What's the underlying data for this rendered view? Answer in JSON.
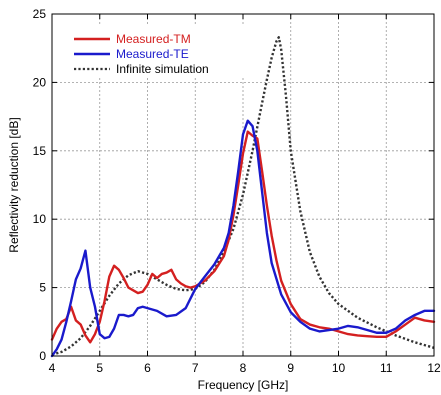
{
  "chart_data": {
    "type": "line",
    "title": "",
    "xlabel": "Frequency [GHz]",
    "ylabel": "Reflectivity reduction [dB]",
    "xlim": [
      4,
      12
    ],
    "ylim": [
      0,
      25
    ],
    "xticks": [
      4,
      5,
      6,
      7,
      8,
      9,
      10,
      11,
      12
    ],
    "yticks": [
      0,
      5,
      10,
      15,
      20,
      25
    ],
    "grid": true,
    "legend_position": "top-left",
    "series": [
      {
        "name": "Measured-TM",
        "color": "#d42020",
        "style": "solid",
        "x": [
          4.0,
          4.1,
          4.2,
          4.3,
          4.4,
          4.5,
          4.6,
          4.7,
          4.8,
          4.9,
          5.0,
          5.1,
          5.2,
          5.3,
          5.4,
          5.5,
          5.6,
          5.7,
          5.8,
          5.9,
          6.0,
          6.1,
          6.2,
          6.3,
          6.4,
          6.5,
          6.6,
          6.7,
          6.8,
          6.9,
          7.0,
          7.2,
          7.4,
          7.6,
          7.7,
          7.8,
          7.9,
          8.0,
          8.1,
          8.2,
          8.3,
          8.4,
          8.5,
          8.6,
          8.7,
          8.8,
          9.0,
          9.2,
          9.4,
          9.6,
          9.8,
          10.0,
          10.2,
          10.4,
          10.6,
          10.8,
          11.0,
          11.2,
          11.4,
          11.6,
          11.8,
          12.0
        ],
        "y": [
          1.2,
          2.0,
          2.5,
          2.7,
          3.6,
          2.6,
          2.3,
          1.5,
          1.0,
          1.6,
          2.5,
          4.0,
          5.8,
          6.6,
          6.3,
          5.7,
          5.0,
          4.8,
          4.6,
          4.7,
          5.2,
          6.0,
          5.7,
          6.0,
          6.1,
          6.3,
          5.6,
          5.3,
          5.1,
          5.0,
          5.1,
          5.5,
          6.2,
          7.3,
          8.5,
          10.3,
          12.5,
          14.8,
          16.4,
          16.1,
          15.9,
          13.5,
          11.0,
          8.8,
          7.0,
          5.5,
          3.8,
          2.7,
          2.3,
          2.1,
          2.0,
          1.8,
          1.6,
          1.5,
          1.45,
          1.4,
          1.4,
          1.8,
          2.3,
          2.8,
          2.6,
          2.5
        ]
      },
      {
        "name": "Measured-TE",
        "color": "#1a1acc",
        "style": "solid",
        "x": [
          4.0,
          4.1,
          4.2,
          4.3,
          4.4,
          4.5,
          4.6,
          4.7,
          4.8,
          4.9,
          5.0,
          5.1,
          5.2,
          5.3,
          5.4,
          5.5,
          5.6,
          5.7,
          5.8,
          5.9,
          6.0,
          6.2,
          6.4,
          6.6,
          6.8,
          7.0,
          7.2,
          7.4,
          7.6,
          7.7,
          7.8,
          7.9,
          8.0,
          8.1,
          8.2,
          8.3,
          8.4,
          8.5,
          8.6,
          8.8,
          9.0,
          9.2,
          9.4,
          9.6,
          9.8,
          10.0,
          10.2,
          10.4,
          10.6,
          10.8,
          11.0,
          11.2,
          11.4,
          11.6,
          11.8,
          12.0
        ],
        "y": [
          0.0,
          0.5,
          1.2,
          2.5,
          4.0,
          5.6,
          6.4,
          7.7,
          5.0,
          3.6,
          1.6,
          1.3,
          1.4,
          2.0,
          3.0,
          3.0,
          2.9,
          3.0,
          3.5,
          3.6,
          3.5,
          3.3,
          2.9,
          3.0,
          3.5,
          4.9,
          5.8,
          6.7,
          7.9,
          9.0,
          11.0,
          13.5,
          16.2,
          17.2,
          16.8,
          15.0,
          12.0,
          9.0,
          6.8,
          4.5,
          3.2,
          2.5,
          2.0,
          1.8,
          1.9,
          2.0,
          2.2,
          2.1,
          1.9,
          1.7,
          1.7,
          2.0,
          2.6,
          3.0,
          3.3,
          3.3
        ]
      },
      {
        "name": "Infinite simulation",
        "color": "#333333",
        "style": "dotted",
        "x": [
          4.0,
          4.2,
          4.4,
          4.6,
          4.8,
          5.0,
          5.2,
          5.4,
          5.6,
          5.8,
          6.0,
          6.2,
          6.4,
          6.6,
          6.8,
          7.0,
          7.2,
          7.4,
          7.6,
          7.8,
          8.0,
          8.2,
          8.4,
          8.5,
          8.6,
          8.7,
          8.75,
          8.8,
          8.9,
          9.0,
          9.2,
          9.4,
          9.6,
          9.8,
          10.0,
          10.4,
          10.8,
          11.2,
          11.6,
          12.0
        ],
        "y": [
          0.1,
          0.3,
          0.7,
          1.3,
          2.2,
          3.3,
          4.4,
          5.3,
          5.9,
          6.2,
          6.0,
          5.6,
          5.2,
          4.9,
          4.8,
          4.9,
          5.4,
          6.3,
          7.6,
          9.3,
          11.8,
          15.0,
          18.5,
          20.2,
          21.8,
          23.0,
          23.3,
          22.4,
          19.0,
          15.0,
          10.6,
          7.6,
          5.8,
          4.6,
          3.8,
          2.8,
          2.1,
          1.5,
          1.0,
          0.6
        ]
      }
    ]
  }
}
